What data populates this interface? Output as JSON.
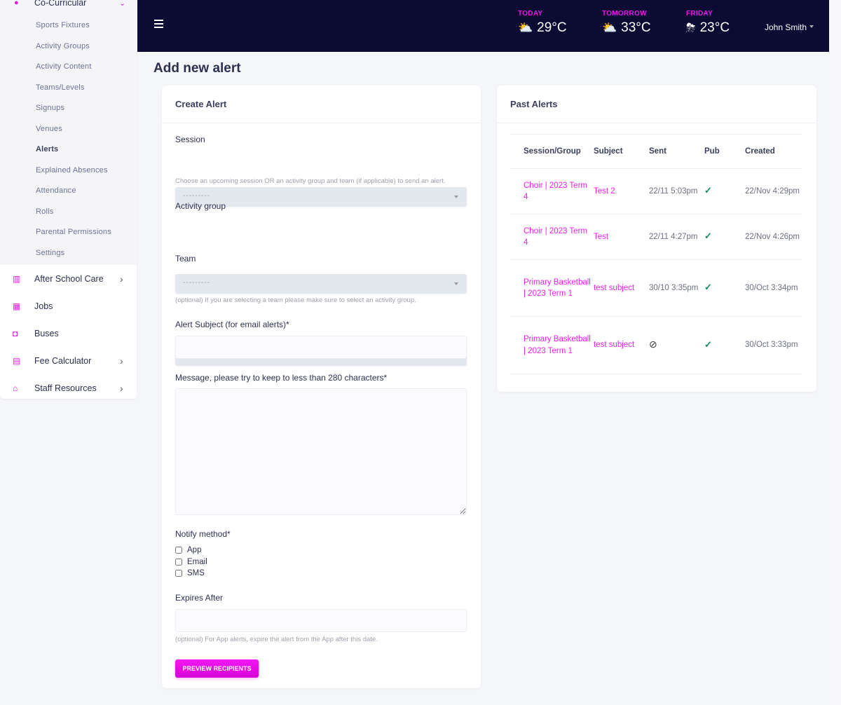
{
  "sidebar": {
    "parent": {
      "label": "Co-Curricular",
      "icon": "co-curricular-icon"
    },
    "sub_items": [
      "Sports Fixtures",
      "Activity Groups",
      "Activity Content",
      "Teams/Levels",
      "Signups",
      "Venues",
      "Alerts",
      "Explained Absences",
      "Attendance",
      "Rolls",
      "Parental Permissions",
      "Settings"
    ],
    "active_sub_item": "Alerts",
    "items": [
      {
        "label": "After School Care",
        "icon": "after-school-care-icon",
        "has_children": true
      },
      {
        "label": "Jobs",
        "icon": "grid-icon",
        "has_children": false
      },
      {
        "label": "Buses",
        "icon": "bus-icon",
        "has_children": false
      },
      {
        "label": "Fee Calculator",
        "icon": "calculator-icon",
        "has_children": true
      },
      {
        "label": "Staff Resources",
        "icon": "bank-icon",
        "has_children": true
      }
    ]
  },
  "header": {
    "weather": [
      {
        "day": "TODAY",
        "temp": "29°C",
        "icon": "partly-cloudy-icon"
      },
      {
        "day": "TOMORROW",
        "temp": "33°C",
        "icon": "partly-cloudy-icon"
      },
      {
        "day": "FRIDAY",
        "temp": "23°C",
        "icon": "rain-icon"
      }
    ],
    "user": "John Smith"
  },
  "page_title": "Add new alert",
  "form": {
    "title": "Create Alert",
    "session": {
      "label": "Session",
      "value": "---------",
      "help": "Choose an upcoming session OR an activity group and team (if applicable) to send an alert."
    },
    "activity_group": {
      "label": "Activity group",
      "value": "---------"
    },
    "team": {
      "label": "Team",
      "value": "---------",
      "help": "(optional) If you are selecting a team please make sure to select an activity group."
    },
    "subject": {
      "label": "Alert Subject (for email alerts)*",
      "value": ""
    },
    "message": {
      "label": "Message, please try to keep to less than 280 characters*",
      "value": ""
    },
    "notify": {
      "label": "Notify method*",
      "options": [
        {
          "label": "App",
          "checked": false
        },
        {
          "label": "Email",
          "checked": false
        },
        {
          "label": "SMS",
          "checked": false
        }
      ]
    },
    "expires": {
      "label": "Expires After",
      "value": "",
      "help": "(optional) For App alerts, expire the alert from the App after this date."
    },
    "submit_label": "PREVIEW RECIPIENTS"
  },
  "past_alerts": {
    "title": "Past Alerts",
    "columns": [
      "Session/Group",
      "Subject",
      "Sent",
      "Pub",
      "Created"
    ],
    "rows": [
      {
        "group": "Choir | 2023 Term 4",
        "subject": "Test 2",
        "sent": "22/11 5:03pm",
        "pub": true,
        "created": "22/Nov 4:29pm"
      },
      {
        "group": "Choir | 2023 Term 4",
        "subject": "Test",
        "sent": "22/11 4:27pm",
        "pub": true,
        "created": "22/Nov 4:26pm"
      },
      {
        "group": "Primary Basketball | 2023 Term 1",
        "subject": "test subject",
        "sent": "30/10 3:35pm",
        "pub": true,
        "created": "30/Oct 3:34pm"
      },
      {
        "group": "Primary Basketball | 2023 Term 1",
        "subject": "test subject",
        "sent": null,
        "pub": true,
        "created": "30/Oct 3:33pm"
      }
    ]
  },
  "colors": {
    "accent": "#e619e6",
    "header_bg": "#0b0b33",
    "success": "#128a5a"
  }
}
